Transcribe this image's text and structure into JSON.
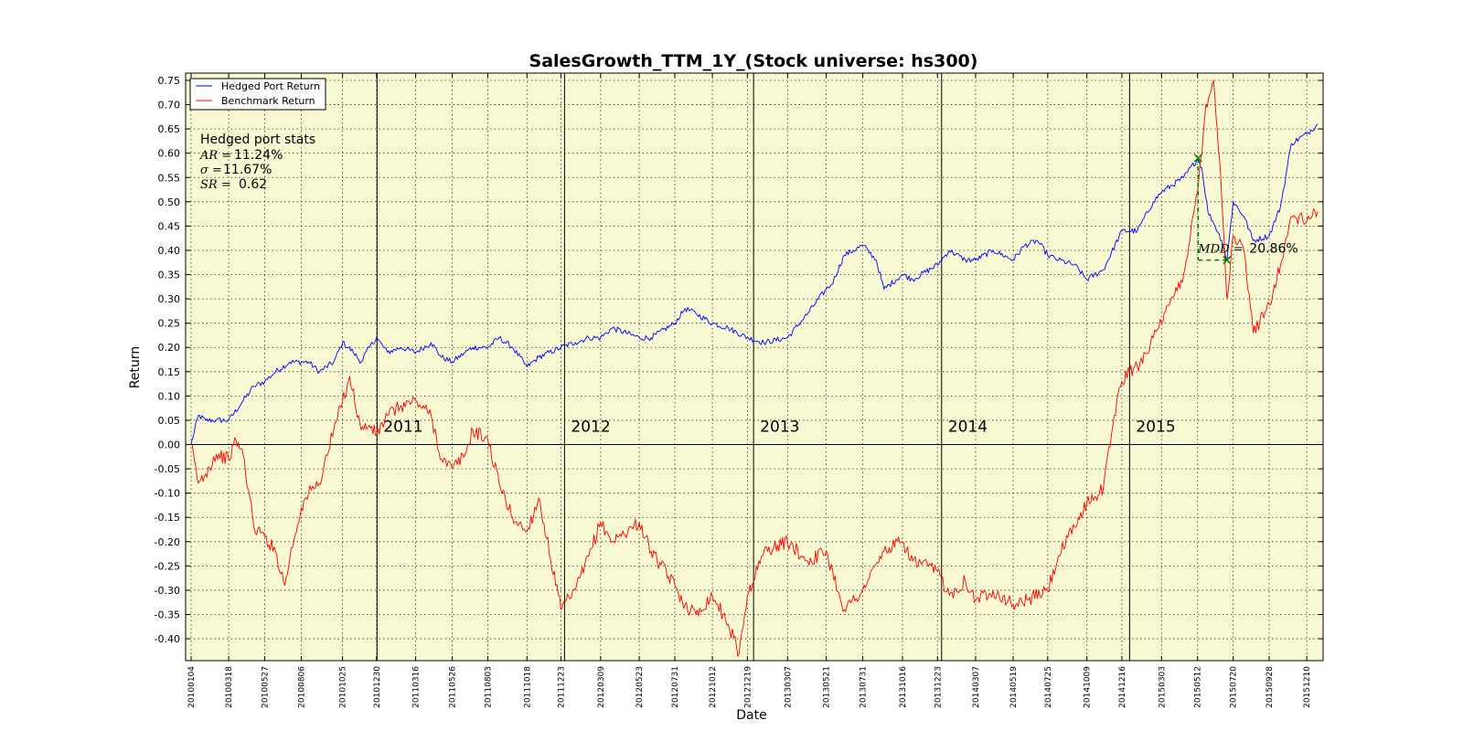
{
  "chart_data": {
    "type": "line",
    "title": "SalesGrowth_TTM_1Y_(Stock universe: hs300)",
    "xlabel": "Date",
    "ylabel": "Return",
    "ylim": [
      -0.445,
      0.765
    ],
    "grid": true,
    "legend_position": "top-left",
    "background_color": "#f8f8d2",
    "x_ticks": [
      "20100104",
      "20100318",
      "20100527",
      "20100806",
      "20101025",
      "20101230",
      "20110316",
      "20110526",
      "20110803",
      "20111018",
      "20111223",
      "20120309",
      "20120523",
      "20120731",
      "20121012",
      "20121219",
      "20130307",
      "20130521",
      "20130731",
      "20131016",
      "20131223",
      "20140307",
      "20140519",
      "20140725",
      "20141009",
      "20141216",
      "20150303",
      "20150512",
      "20150720",
      "20150928",
      "20151210"
    ],
    "y_ticks": [
      "0.75",
      "0.70",
      "0.65",
      "0.60",
      "0.55",
      "0.50",
      "0.45",
      "0.40",
      "0.35",
      "0.30",
      "0.25",
      "0.20",
      "0.15",
      "0.10",
      "0.05",
      "0.00",
      "-0.05",
      "-0.10",
      "-0.15",
      "-0.20",
      "-0.25",
      "-0.30",
      "-0.35",
      "-0.40"
    ],
    "year_boundaries": [
      {
        "date": "20101231",
        "label": "2011"
      },
      {
        "date": "20111230",
        "label": "2012"
      },
      {
        "date": "20121231",
        "label": "2013"
      },
      {
        "date": "20131231",
        "label": "2014"
      },
      {
        "date": "20141231",
        "label": "2015"
      }
    ],
    "series": [
      {
        "name": "Hedged Port Return",
        "color": "#0000ff",
        "points": [
          [
            "20100104",
            0.0
          ],
          [
            "20100118",
            0.06
          ],
          [
            "20100201",
            0.05
          ],
          [
            "20100222",
            0.05
          ],
          [
            "20100318",
            0.05
          ],
          [
            "20100415",
            0.09
          ],
          [
            "20100506",
            0.12
          ],
          [
            "20100527",
            0.13
          ],
          [
            "20100617",
            0.15
          ],
          [
            "20100715",
            0.17
          ],
          [
            "20100806",
            0.17
          ],
          [
            "20100820",
            0.17
          ],
          [
            "20100910",
            0.15
          ],
          [
            "20101008",
            0.17
          ],
          [
            "20101025",
            0.21
          ],
          [
            "20101115",
            0.19
          ],
          [
            "20101130",
            0.17
          ],
          [
            "20101216",
            0.2
          ],
          [
            "20101230",
            0.22
          ],
          [
            "20110120",
            0.19
          ],
          [
            "20110216",
            0.2
          ],
          [
            "20110316",
            0.19
          ],
          [
            "20110415",
            0.21
          ],
          [
            "20110505",
            0.18
          ],
          [
            "20110526",
            0.17
          ],
          [
            "20110620",
            0.19
          ],
          [
            "20110705",
            0.2
          ],
          [
            "20110803",
            0.2
          ],
          [
            "20110825",
            0.22
          ],
          [
            "20110920",
            0.2
          ],
          [
            "20111018",
            0.16
          ],
          [
            "20111110",
            0.18
          ],
          [
            "20111223",
            0.2
          ],
          [
            "20120120",
            0.21
          ],
          [
            "20120215",
            0.22
          ],
          [
            "20120309",
            0.22
          ],
          [
            "20120401",
            0.24
          ],
          [
            "20120523",
            0.22
          ],
          [
            "20120615",
            0.22
          ],
          [
            "20120731",
            0.25
          ],
          [
            "20120820",
            0.28
          ],
          [
            "20120910",
            0.27
          ],
          [
            "20121012",
            0.25
          ],
          [
            "20121112",
            0.24
          ],
          [
            "20121219",
            0.22
          ],
          [
            "20130120",
            0.21
          ],
          [
            "20130307",
            0.22
          ],
          [
            "20130415",
            0.27
          ],
          [
            "20130521",
            0.32
          ],
          [
            "20130601",
            0.33
          ],
          [
            "20130625",
            0.39
          ],
          [
            "20130731",
            0.41
          ],
          [
            "20130810",
            0.4
          ],
          [
            "20130826",
            0.38
          ],
          [
            "20130910",
            0.32
          ],
          [
            "20131016",
            0.35
          ],
          [
            "20131105",
            0.34
          ],
          [
            "20131223",
            0.37
          ],
          [
            "20140115",
            0.4
          ],
          [
            "20140215",
            0.38
          ],
          [
            "20140307",
            0.38
          ],
          [
            "20140410",
            0.4
          ],
          [
            "20140519",
            0.38
          ],
          [
            "20140610",
            0.41
          ],
          [
            "20140705",
            0.42
          ],
          [
            "20140725",
            0.39
          ],
          [
            "20140815",
            0.38
          ],
          [
            "20140915",
            0.37
          ],
          [
            "20141009",
            0.34
          ],
          [
            "20141110",
            0.36
          ],
          [
            "20141216",
            0.44
          ],
          [
            "20150115",
            0.44
          ],
          [
            "20150215",
            0.5
          ],
          [
            "20150303",
            0.52
          ],
          [
            "20150415",
            0.55
          ],
          [
            "20150513",
            0.59
          ],
          [
            "20150520",
            0.57
          ],
          [
            "20150601",
            0.48
          ],
          [
            "20150615",
            0.45
          ],
          [
            "20150628",
            0.42
          ],
          [
            "20150708",
            0.38
          ],
          [
            "20150720",
            0.5
          ],
          [
            "20150810",
            0.47
          ],
          [
            "20150828",
            0.42
          ],
          [
            "20150928",
            0.43
          ],
          [
            "20151020",
            0.49
          ],
          [
            "20151110",
            0.62
          ],
          [
            "20151210",
            0.64
          ],
          [
            "20151231",
            0.66
          ]
        ]
      },
      {
        "name": "Benchmark Return",
        "color": "#ff0000",
        "points": [
          [
            "20100104",
            0.0
          ],
          [
            "20100118",
            -0.08
          ],
          [
            "20100201",
            -0.06
          ],
          [
            "20100222",
            -0.02
          ],
          [
            "20100318",
            -0.03
          ],
          [
            "20100401",
            0.01
          ],
          [
            "20100415",
            -0.02
          ],
          [
            "20100506",
            -0.17
          ],
          [
            "20100527",
            -0.19
          ],
          [
            "20100617",
            -0.22
          ],
          [
            "20100705",
            -0.29
          ],
          [
            "20100715",
            -0.23
          ],
          [
            "20100806",
            -0.13
          ],
          [
            "20100820",
            -0.1
          ],
          [
            "20100910",
            -0.08
          ],
          [
            "20101008",
            0.03
          ],
          [
            "20101025",
            0.09
          ],
          [
            "20101108",
            0.14
          ],
          [
            "20101130",
            0.03
          ],
          [
            "20101216",
            0.04
          ],
          [
            "20101230",
            0.02
          ],
          [
            "20110120",
            0.06
          ],
          [
            "20110216",
            0.08
          ],
          [
            "20110316",
            0.09
          ],
          [
            "20110415",
            0.06
          ],
          [
            "20110505",
            -0.03
          ],
          [
            "20110526",
            -0.05
          ],
          [
            "20110620",
            -0.02
          ],
          [
            "20110705",
            0.03
          ],
          [
            "20110803",
            0.01
          ],
          [
            "20110825",
            -0.08
          ],
          [
            "20110920",
            -0.15
          ],
          [
            "20111018",
            -0.18
          ],
          [
            "20111110",
            -0.11
          ],
          [
            "20111223",
            -0.34
          ],
          [
            "20120120",
            -0.3
          ],
          [
            "20120215",
            -0.23
          ],
          [
            "20120309",
            -0.16
          ],
          [
            "20120401",
            -0.2
          ],
          [
            "20120523",
            -0.16
          ],
          [
            "20120615",
            -0.22
          ],
          [
            "20120731",
            -0.29
          ],
          [
            "20120820",
            -0.33
          ],
          [
            "20120910",
            -0.35
          ],
          [
            "20121012",
            -0.31
          ],
          [
            "20121112",
            -0.37
          ],
          [
            "20121203",
            -0.43
          ],
          [
            "20121219",
            -0.31
          ],
          [
            "20130120",
            -0.22
          ],
          [
            "20130307",
            -0.2
          ],
          [
            "20130415",
            -0.24
          ],
          [
            "20130521",
            -0.22
          ],
          [
            "20130625",
            -0.34
          ],
          [
            "20130731",
            -0.3
          ],
          [
            "20130810",
            -0.28
          ],
          [
            "20130910",
            -0.22
          ],
          [
            "20131016",
            -0.2
          ],
          [
            "20131105",
            -0.24
          ],
          [
            "20131223",
            -0.26
          ],
          [
            "20140115",
            -0.31
          ],
          [
            "20140215",
            -0.28
          ],
          [
            "20140307",
            -0.32
          ],
          [
            "20140410",
            -0.3
          ],
          [
            "20140519",
            -0.33
          ],
          [
            "20140615",
            -0.32
          ],
          [
            "20140725",
            -0.3
          ],
          [
            "20140815",
            -0.23
          ],
          [
            "20140915",
            -0.17
          ],
          [
            "20141009",
            -0.12
          ],
          [
            "20141110",
            -0.09
          ],
          [
            "20141201",
            0.06
          ],
          [
            "20141216",
            0.13
          ],
          [
            "20141231",
            0.15
          ],
          [
            "20150115",
            0.16
          ],
          [
            "20150215",
            0.22
          ],
          [
            "20150303",
            0.25
          ],
          [
            "20150415",
            0.35
          ],
          [
            "20150512",
            0.52
          ],
          [
            "20150528",
            0.7
          ],
          [
            "20150612",
            0.75
          ],
          [
            "20150626",
            0.55
          ],
          [
            "20150708",
            0.3
          ],
          [
            "20150720",
            0.43
          ],
          [
            "20150810",
            0.4
          ],
          [
            "20150828",
            0.23
          ],
          [
            "20150928",
            0.29
          ],
          [
            "20151020",
            0.37
          ],
          [
            "20151110",
            0.47
          ],
          [
            "20151210",
            0.46
          ],
          [
            "20151231",
            0.48
          ]
        ]
      }
    ],
    "stats": {
      "heading": "Hedged port stats",
      "ar_label": "AR =",
      "ar_value": "11.24%",
      "sigma_label": "σ =",
      "sigma_value": "11.67%",
      "sr_label": "SR =",
      "sr_value": "0.62"
    },
    "mdd": {
      "label": "MDD =",
      "value": "20.86%",
      "peak": [
        "20150513",
        0.59
      ],
      "trough": [
        "20150708",
        0.38
      ],
      "color": "#008000"
    }
  }
}
